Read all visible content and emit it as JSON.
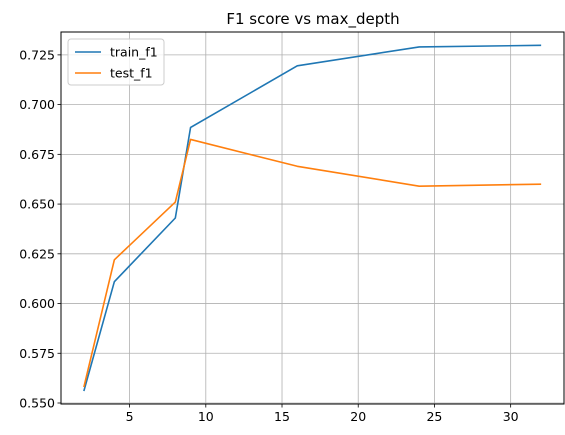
{
  "chart_data": {
    "type": "line",
    "title": "F1 score vs max_depth",
    "xlabel": "",
    "ylabel": "",
    "x": [
      2,
      4,
      8,
      9,
      16,
      24,
      32
    ],
    "series": [
      {
        "name": "train_f1",
        "color": "#1f77b4",
        "values": [
          0.556,
          0.611,
          0.643,
          0.6885,
          0.7195,
          0.729,
          0.7298
        ]
      },
      {
        "name": "test_f1",
        "color": "#ff7f0e",
        "values": [
          0.558,
          0.622,
          0.651,
          0.6825,
          0.669,
          0.659,
          0.66
        ]
      }
    ],
    "xlim": [
      0.5,
      33.5
    ],
    "ylim": [
      0.5495,
      0.7365
    ],
    "xticks": [
      5,
      10,
      15,
      20,
      25,
      30
    ],
    "yticks": [
      0.55,
      0.575,
      0.6,
      0.625,
      0.65,
      0.675,
      0.7,
      0.725
    ],
    "ytick_labels": [
      "0.550",
      "0.575",
      "0.600",
      "0.625",
      "0.650",
      "0.675",
      "0.700",
      "0.725"
    ],
    "grid": true,
    "legend": "top-left"
  }
}
